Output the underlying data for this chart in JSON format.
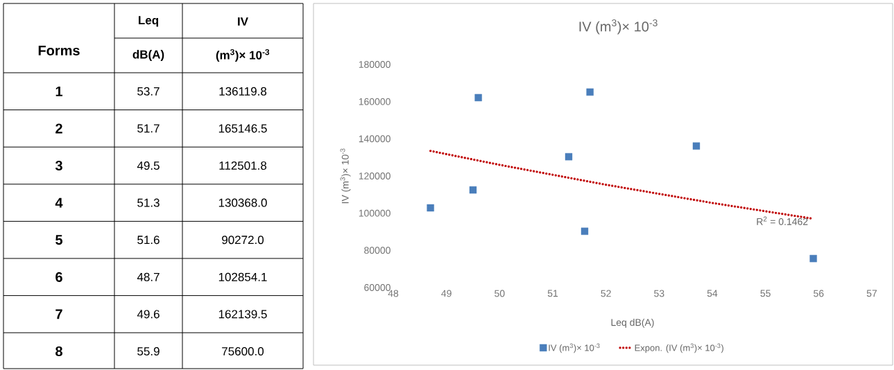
{
  "chart_data": {
    "type": "scatter",
    "title": "IV (m$^{3}$)× 10$^{-3}$",
    "xlabel": "Leq dB(A)",
    "ylabel": "IV (m$^{3}$)× 10$^{-3}$",
    "xlim": [
      48,
      57
    ],
    "xticks": [
      48,
      49,
      50,
      51,
      52,
      53,
      54,
      55,
      56,
      57
    ],
    "ylim": [
      60000,
      180000
    ],
    "yticks": [
      60000,
      80000,
      100000,
      120000,
      140000,
      160000,
      180000
    ],
    "grid": false,
    "legend": "bottom",
    "marker": "square",
    "series": [
      {
        "name": "IV (m$^{3}$)× 10$^{-3}$",
        "color": "#4a7ebb",
        "x": [
          53.7,
          51.7,
          49.5,
          51.3,
          51.6,
          48.7,
          49.6,
          55.9
        ],
        "values": [
          136119.8,
          165146.5,
          112501.8,
          130368.0,
          90272.0,
          102854.1,
          162139.5,
          75600.0
        ]
      },
      {
        "name": "Expon. (IV (m$^{3}$)× 10$^{-3}$)",
        "type": "line",
        "color": "#c00000",
        "line_style": "dotted",
        "marker": "none",
        "x": [
          48.7,
          50,
          52,
          54,
          55.9
        ],
        "values": [
          133500,
          126000,
          115300,
          105500,
          97000
        ]
      }
    ],
    "annotations": [
      "Forms",
      "Leq",
      "dB(A)",
      "IV",
      "(m$^{3}$)× 10$^{-3}$",
      "1",
      "53.7",
      "136119.8",
      "2",
      "51.7",
      "165146.5",
      "3",
      "49.5",
      "112501.8",
      "4",
      "51.3",
      "130368.0",
      "5",
      "51.6",
      "90272.0",
      "6",
      "48.7",
      "102854.1",
      "7",
      "49.6",
      "162139.5",
      "8",
      "55.9",
      "75600.0",
      {
        "text": "R$^{2}$ = 0.1462",
        "x": 55.9,
        "y": 97000
      }
    ]
  }
}
